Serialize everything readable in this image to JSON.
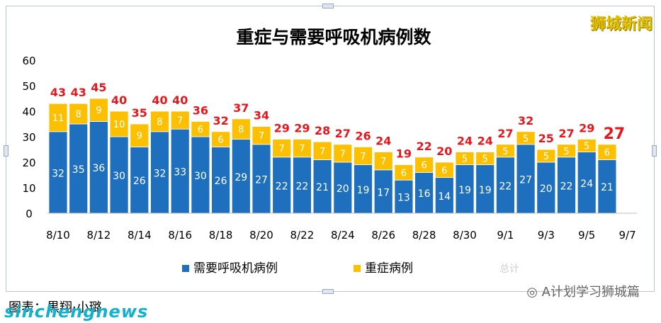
{
  "watermarks": {
    "top_right": "狮城新闻",
    "bottom_left": "sinchengnews",
    "account": "A计划学习狮城篇",
    "legend_faint": "总计"
  },
  "caption": "图表：黒翔·小璐",
  "colors": {
    "blue": "#1f6fbf",
    "yellow": "#fcc000",
    "total_label": "#e8151b"
  },
  "chart_data": {
    "type": "bar",
    "stacked": true,
    "title": "重症与需要呼吸机病例数",
    "categories": [
      "8/10",
      "8/11",
      "8/12",
      "8/13",
      "8/14",
      "8/15",
      "8/16",
      "8/17",
      "8/18",
      "8/19",
      "8/20",
      "8/21",
      "8/22",
      "8/23",
      "8/24",
      "8/25",
      "8/26",
      "8/27",
      "8/28",
      "8/29",
      "8/30",
      "8/31",
      "9/1",
      "9/2",
      "9/3",
      "9/4",
      "9/5",
      "9/6"
    ],
    "tick_labels": [
      "8/10",
      "8/12",
      "8/14",
      "8/16",
      "8/18",
      "8/20",
      "8/22",
      "8/24",
      "8/26",
      "8/28",
      "8/30",
      "9/1",
      "9/3",
      "9/5",
      "9/7"
    ],
    "series": [
      {
        "name": "需要呼吸机病例",
        "color": "#1f6fbf",
        "values": [
          32,
          35,
          36,
          30,
          26,
          32,
          33,
          30,
          26,
          29,
          27,
          22,
          22,
          21,
          20,
          19,
          17,
          13,
          16,
          14,
          19,
          19,
          22,
          27,
          20,
          22,
          24,
          21
        ]
      },
      {
        "name": "重症病例",
        "color": "#fcc000",
        "values": [
          11,
          8,
          9,
          10,
          9,
          8,
          7,
          6,
          6,
          8,
          7,
          7,
          7,
          7,
          7,
          7,
          7,
          6,
          6,
          6,
          5,
          5,
          5,
          5,
          5,
          5,
          5,
          6
        ]
      }
    ],
    "totals": [
      43,
      43,
      45,
      40,
      35,
      40,
      40,
      36,
      32,
      37,
      34,
      29,
      29,
      28,
      27,
      26,
      24,
      19,
      22,
      20,
      24,
      24,
      27,
      32,
      25,
      27,
      29,
      27
    ],
    "yticks": [
      0,
      10,
      20,
      30,
      40,
      50,
      60
    ],
    "ylim": [
      0,
      60
    ],
    "legend": "bottom-center"
  }
}
